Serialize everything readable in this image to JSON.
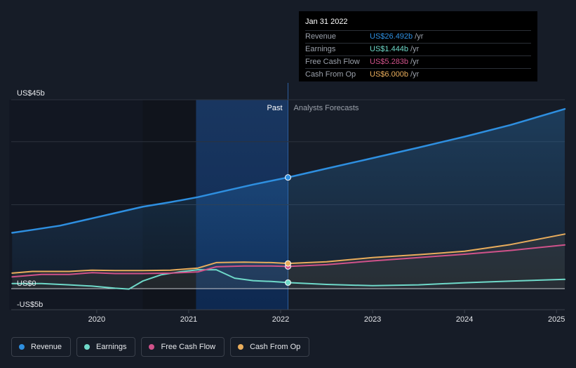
{
  "chart_data": {
    "type": "line",
    "ylim": [
      -5,
      45
    ],
    "y_tick_labels": [
      "US$45b",
      "US$0",
      "-US$5b"
    ],
    "x_ticks": [
      2020,
      2021,
      2022,
      2023,
      2024,
      2025
    ],
    "x_tick_labels": [
      "2020",
      "2021",
      "2022",
      "2023",
      "2024",
      "2025"
    ],
    "xlim": [
      2019.07,
      2025.09
    ],
    "divider_x": 2022.08,
    "highlight_start_x": 2021.08,
    "region_labels": {
      "past": "Past",
      "forecast": "Analysts Forecasts"
    },
    "grid": true,
    "legend_position": "bottom-left",
    "series": [
      {
        "name": "Revenue",
        "color": "#2e8fe0",
        "fill": true,
        "x": [
          2019.08,
          2019.3,
          2019.6,
          2019.9,
          2020.2,
          2020.5,
          2020.8,
          2021.1,
          2021.4,
          2021.7,
          2022.08,
          2022.5,
          2023.0,
          2023.5,
          2024.0,
          2024.5,
          2025.09
        ],
        "y": [
          13.3,
          14.0,
          15.0,
          16.5,
          18.0,
          19.5,
          20.6,
          21.8,
          23.3,
          24.8,
          26.49,
          28.6,
          31.1,
          33.6,
          36.2,
          39.0,
          42.8
        ]
      },
      {
        "name": "Earnings",
        "color": "#6fd9c9",
        "x": [
          2019.08,
          2019.4,
          2019.7,
          2019.95,
          2020.2,
          2020.35,
          2020.5,
          2020.7,
          2020.9,
          2021.1,
          2021.3,
          2021.5,
          2021.7,
          2021.9,
          2022.08,
          2022.5,
          2023.0,
          2023.5,
          2024.0,
          2024.5,
          2025.09
        ],
        "y": [
          1.2,
          1.2,
          0.9,
          0.6,
          0.1,
          -0.1,
          1.8,
          3.3,
          4.0,
          4.5,
          4.5,
          2.5,
          1.9,
          1.7,
          1.44,
          1.0,
          0.7,
          0.9,
          1.4,
          1.8,
          2.2
        ]
      },
      {
        "name": "Free Cash Flow",
        "color": "#d0528a",
        "x": [
          2019.08,
          2019.4,
          2019.7,
          2019.95,
          2020.2,
          2020.5,
          2020.8,
          2021.1,
          2021.3,
          2021.6,
          2021.9,
          2022.08,
          2022.5,
          2023.0,
          2023.5,
          2024.0,
          2024.5,
          2025.09
        ],
        "y": [
          2.8,
          3.4,
          3.4,
          3.8,
          3.6,
          3.6,
          3.7,
          4.0,
          5.2,
          5.4,
          5.4,
          5.28,
          5.7,
          6.6,
          7.4,
          8.2,
          9.1,
          10.4
        ]
      },
      {
        "name": "Cash From Op",
        "color": "#e9ad5c",
        "x": [
          2019.08,
          2019.3,
          2019.7,
          2019.95,
          2020.2,
          2020.5,
          2020.8,
          2021.1,
          2021.3,
          2021.6,
          2021.9,
          2022.08,
          2022.5,
          2023.0,
          2023.5,
          2024.0,
          2024.5,
          2025.09
        ],
        "y": [
          3.7,
          4.1,
          4.1,
          4.4,
          4.3,
          4.3,
          4.4,
          4.9,
          6.2,
          6.3,
          6.2,
          6.0,
          6.4,
          7.4,
          8.1,
          8.9,
          10.5,
          13.0
        ]
      }
    ],
    "tooltip": {
      "date": "Jan 31 2022",
      "rows": [
        {
          "label": "Revenue",
          "value": "US$26.492b",
          "unit": "/yr",
          "color": "#2e8fe0"
        },
        {
          "label": "Earnings",
          "value": "US$1.444b",
          "unit": "/yr",
          "color": "#6fd9c9"
        },
        {
          "label": "Free Cash Flow",
          "value": "US$5.283b",
          "unit": "/yr",
          "color": "#d0528a"
        },
        {
          "label": "Cash From Op",
          "value": "US$6.000b",
          "unit": "/yr",
          "color": "#e9ad5c"
        }
      ]
    }
  },
  "legend": [
    {
      "label": "Revenue",
      "color": "#2e8fe0"
    },
    {
      "label": "Earnings",
      "color": "#6fd9c9"
    },
    {
      "label": "Free Cash Flow",
      "color": "#d0528a"
    },
    {
      "label": "Cash From Op",
      "color": "#e9ad5c"
    }
  ]
}
